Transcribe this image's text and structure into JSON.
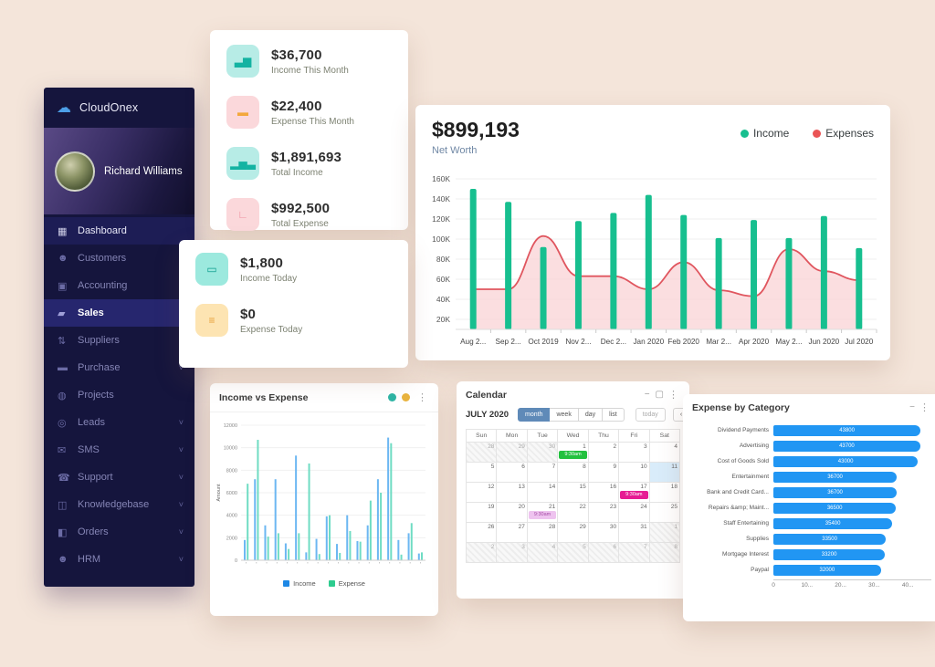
{
  "app": {
    "brand": "CloudOnex",
    "user_name": "Richard Williams"
  },
  "sidebar": {
    "items": [
      {
        "label": "Dashboard",
        "icon": "dashboard-icon",
        "active": "soft",
        "chevron": false
      },
      {
        "label": "Customers",
        "icon": "customers-icon",
        "active": "",
        "chevron": false
      },
      {
        "label": "Accounting",
        "icon": "accounting-icon",
        "active": "",
        "chevron": false
      },
      {
        "label": "Sales",
        "icon": "sales-icon",
        "active": "strong",
        "chevron": false
      },
      {
        "label": "Suppliers",
        "icon": "suppliers-icon",
        "active": "",
        "chevron": false
      },
      {
        "label": "Purchase",
        "icon": "purchase-icon",
        "active": "",
        "chevron": true
      },
      {
        "label": "Projects",
        "icon": "projects-icon",
        "active": "",
        "chevron": false
      },
      {
        "label": "Leads",
        "icon": "leads-icon",
        "active": "",
        "chevron": true
      },
      {
        "label": "SMS",
        "icon": "sms-icon",
        "active": "",
        "chevron": true
      },
      {
        "label": "Support",
        "icon": "support-icon",
        "active": "",
        "chevron": true
      },
      {
        "label": "Knowledgebase",
        "icon": "knowledgebase-icon",
        "active": "",
        "chevron": true
      },
      {
        "label": "Orders",
        "icon": "orders-icon",
        "active": "",
        "chevron": true
      },
      {
        "label": "HRM",
        "icon": "hrm-icon",
        "active": "",
        "chevron": true
      }
    ]
  },
  "stats_card": {
    "items": [
      {
        "value": "$36,700",
        "label": "Income This Month",
        "icon": "income-month-icon",
        "bg": "#b7ece6",
        "fg": "#14b3a2"
      },
      {
        "value": "$22,400",
        "label": "Expense This Month",
        "icon": "expense-month-icon",
        "bg": "#fbd8db",
        "fg": "#f3a83c"
      },
      {
        "value": "$1,891,693",
        "label": "Total Income",
        "icon": "total-income-icon",
        "bg": "#b7ece6",
        "fg": "#14b3a2"
      },
      {
        "value": "$992,500",
        "label": "Total Expense",
        "icon": "total-expense-icon",
        "bg": "#fbd8db",
        "fg": "#ef8f9f"
      }
    ]
  },
  "today_card": {
    "items": [
      {
        "value": "$1,800",
        "label": "Income Today",
        "icon": "income-today-icon",
        "bg": "#9ce9de",
        "fg": "#0f9e8e"
      },
      {
        "value": "$0",
        "label": "Expense Today",
        "icon": "expense-today-icon",
        "bg": "#fde4b2",
        "fg": "#e8a23c"
      }
    ]
  },
  "networth": {
    "value": "$899,193",
    "label": "Net Worth",
    "legend": [
      {
        "label": "Income",
        "color": "#17bf8f"
      },
      {
        "label": "Expenses",
        "color": "#ea5455"
      }
    ]
  },
  "income_expense_card": {
    "title": "Income vs Expense",
    "dot_colors": [
      "#2eb5a5",
      "#e9b43f"
    ],
    "legend": [
      {
        "label": "Income",
        "color": "#1e88e5"
      },
      {
        "label": "Expense",
        "color": "#2ecc8f"
      }
    ]
  },
  "calendar": {
    "title": "Calendar",
    "month_label": "JULY 2020",
    "views": [
      "month",
      "week",
      "day",
      "list"
    ],
    "active_view": "month",
    "today_label": "today",
    "weekdays": [
      "Sun",
      "Mon",
      "Tue",
      "Wed",
      "Thu",
      "Fri",
      "Sat"
    ],
    "event_colors": {
      "green": "#22c13e",
      "pink": "#e61c93",
      "lavender": "#eec3ef"
    },
    "cells": [
      {
        "d": "28",
        "o": true
      },
      {
        "d": "29",
        "o": true
      },
      {
        "d": "30",
        "o": true
      },
      {
        "d": "1",
        "ev": {
          "t": "9:30am",
          "c": "green"
        }
      },
      {
        "d": "2"
      },
      {
        "d": "3"
      },
      {
        "d": "4"
      },
      {
        "d": "5"
      },
      {
        "d": "6"
      },
      {
        "d": "7"
      },
      {
        "d": "8"
      },
      {
        "d": "9"
      },
      {
        "d": "10"
      },
      {
        "d": "11",
        "today": true
      },
      {
        "d": "12"
      },
      {
        "d": "13"
      },
      {
        "d": "14"
      },
      {
        "d": "15"
      },
      {
        "d": "16"
      },
      {
        "d": "17",
        "ev": {
          "t": "9:30am",
          "c": "pink"
        }
      },
      {
        "d": "18"
      },
      {
        "d": "19"
      },
      {
        "d": "20"
      },
      {
        "d": "21",
        "ev": {
          "t": "9:30am",
          "c": "lavender"
        }
      },
      {
        "d": "22"
      },
      {
        "d": "23"
      },
      {
        "d": "24"
      },
      {
        "d": "25"
      },
      {
        "d": "26"
      },
      {
        "d": "27"
      },
      {
        "d": "28"
      },
      {
        "d": "29"
      },
      {
        "d": "30"
      },
      {
        "d": "31"
      },
      {
        "d": "1",
        "o": true
      },
      {
        "d": "2",
        "o": true
      },
      {
        "d": "3",
        "o": true
      },
      {
        "d": "4",
        "o": true
      },
      {
        "d": "5",
        "o": true
      },
      {
        "d": "6",
        "o": true
      },
      {
        "d": "7",
        "o": true
      },
      {
        "d": "8",
        "o": true
      }
    ]
  },
  "expense_category_card": {
    "title": "Expense by Category"
  },
  "chart_data": [
    {
      "id": "networth",
      "type": "bar+area",
      "title": "$899,193",
      "subtitle": "Net Worth",
      "categories": [
        "Aug 2...",
        "Sep 2...",
        "Oct 2019",
        "Nov 2...",
        "Dec 2...",
        "Jan 2020",
        "Feb 2020",
        "Mar 2...",
        "Apr 2020",
        "May 2...",
        "Jun 2020",
        "Jul 2020"
      ],
      "series": [
        {
          "name": "Income",
          "type": "bar",
          "color": "#17bf8f",
          "values": [
            150000,
            137000,
            92000,
            118000,
            126000,
            144000,
            124000,
            101000,
            119000,
            101000,
            123000,
            91000
          ]
        },
        {
          "name": "Expenses",
          "type": "area",
          "color": "#e0565f",
          "fill": "#f9d3d6",
          "values": [
            50000,
            50000,
            103000,
            63000,
            63000,
            50000,
            77000,
            49000,
            43000,
            90000,
            68000,
            59000
          ]
        }
      ],
      "ymin": 10000,
      "ymax": 170000,
      "yticks": [
        20000,
        40000,
        60000,
        80000,
        100000,
        120000,
        140000,
        160000
      ],
      "ytick_labels": [
        "20K",
        "40K",
        "60K",
        "80K",
        "100K",
        "120K",
        "140K",
        "160K"
      ],
      "grid": true,
      "legend_position": "top-right"
    },
    {
      "id": "income_vs_expense",
      "type": "bar",
      "title": "Income vs Expense",
      "ylabel": "Amount",
      "categories": [
        "",
        "",
        "",
        "",
        "",
        "",
        "",
        "",
        "",
        "",
        "",
        "",
        "",
        "",
        "",
        "",
        "",
        ""
      ],
      "series": [
        {
          "name": "Income",
          "color": "#6cb7f2",
          "values": [
            1800,
            7200,
            3100,
            7200,
            1500,
            9300,
            700,
            1900,
            3900,
            1450,
            4000,
            1700,
            3100,
            7200,
            10900,
            1800,
            2400,
            600
          ]
        },
        {
          "name": "Expense",
          "color": "#6fdcc3",
          "values": [
            6800,
            10700,
            2100,
            2400,
            1000,
            2400,
            8600,
            550,
            4000,
            650,
            2600,
            1650,
            5300,
            6000,
            10400,
            500,
            3300,
            700
          ]
        }
      ],
      "ymin": 0,
      "ymax": 12000,
      "yticks": [
        0,
        2000,
        4000,
        6000,
        8000,
        10000,
        12000
      ],
      "grid": true,
      "legend_position": "bottom"
    },
    {
      "id": "expense_by_category",
      "type": "hbar",
      "title": "Expense by Category",
      "categories": [
        "Dividend Payments",
        "Advertising",
        "Cost of Goods Sold",
        "Entertainment",
        "Bank and Credit Card...",
        "Repairs &amp; Maint...",
        "Staff Entertaining",
        "Supplies",
        "Mortgage Interest",
        "Paypal"
      ],
      "values": [
        43800,
        43700,
        43000,
        36700,
        36700,
        36500,
        35400,
        33500,
        33200,
        32000
      ],
      "color": "#2196f3",
      "xmax": 47000,
      "xticks": [
        0,
        10000,
        20000,
        30000,
        40000
      ],
      "xtick_labels": [
        "0",
        "10...",
        "20...",
        "30...",
        "40..."
      ],
      "grid": false
    }
  ]
}
